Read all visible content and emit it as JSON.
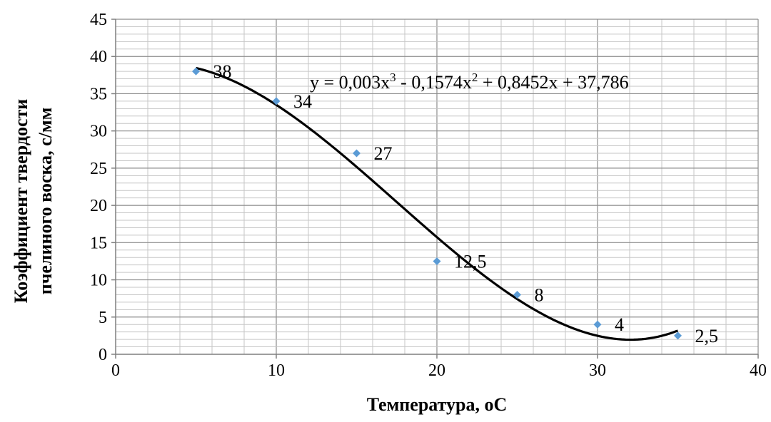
{
  "chart_data": {
    "type": "scatter",
    "xlabel": "Температура, oC",
    "ylabel_lines": [
      "Коэффициент твердости",
      "пчелиного воска, с/мм"
    ],
    "xlim": [
      0,
      40
    ],
    "ylim": [
      0,
      45
    ],
    "x_ticks": [
      0,
      10,
      20,
      30,
      40
    ],
    "y_ticks": [
      0,
      5,
      10,
      15,
      20,
      25,
      30,
      35,
      40,
      45
    ],
    "x_tick_labels": [
      "0",
      "10",
      "20",
      "30",
      "40"
    ],
    "y_tick_labels": [
      "0",
      "5",
      "10",
      "15",
      "20",
      "25",
      "30",
      "35",
      "40",
      "45"
    ],
    "grid": true,
    "series": [
      {
        "x": [
          5,
          10,
          15,
          20,
          25,
          30,
          35
        ],
        "y": [
          38,
          34,
          27,
          12.5,
          8,
          4,
          2.5
        ],
        "data_labels": [
          "38",
          "34",
          "27",
          "12,5",
          "8",
          "4",
          "2,5"
        ],
        "marker": "diamond",
        "color": "#5b9bd5"
      }
    ],
    "trendline": {
      "type": "polynomial",
      "order": 3,
      "coefficients": [
        0.003,
        -0.1574,
        0.8452,
        37.786
      ],
      "x_range": [
        5,
        35
      ],
      "color": "#000000",
      "equation_parts": [
        "y = 0,003x",
        "3",
        " - 0,1574x",
        "2",
        " + 0,8452x + 37,786"
      ]
    }
  }
}
